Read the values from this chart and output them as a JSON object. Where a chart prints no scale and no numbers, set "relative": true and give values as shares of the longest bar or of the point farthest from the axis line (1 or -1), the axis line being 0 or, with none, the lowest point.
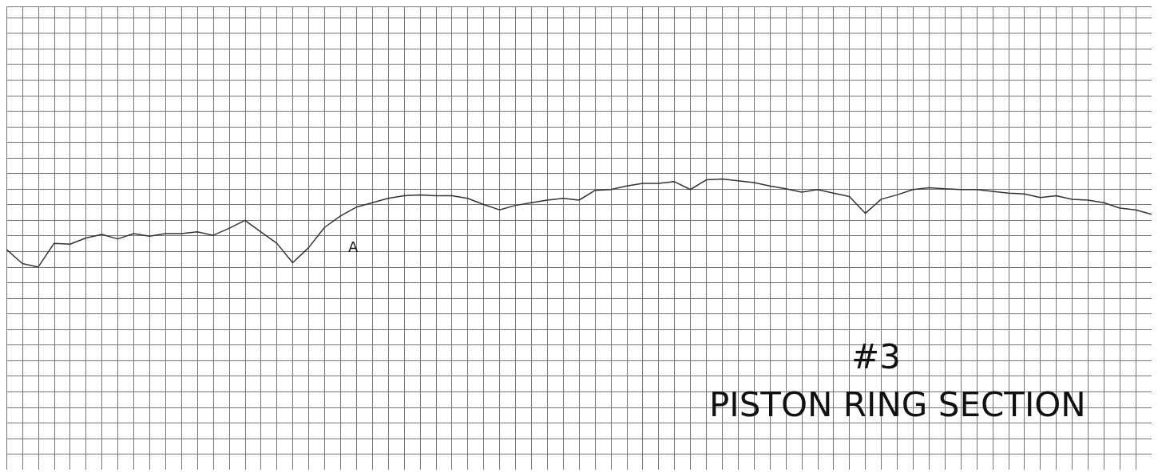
{
  "chart_data": {
    "type": "line",
    "relative": true,
    "grid": true,
    "marker": "none",
    "line_style": "solid",
    "categories": [
      null,
      null,
      null,
      null,
      null,
      null,
      null,
      null,
      null,
      null,
      null,
      null,
      null,
      null,
      null,
      null,
      null,
      null,
      null,
      null,
      null,
      null,
      null,
      null,
      null,
      null,
      null,
      null,
      null,
      null,
      null,
      null,
      null,
      null,
      null,
      null,
      null,
      null,
      null,
      null,
      null,
      null,
      null,
      null,
      null,
      null,
      null,
      null,
      null,
      null,
      null,
      null,
      null,
      null,
      null,
      null,
      null,
      null,
      null,
      null,
      null,
      null,
      null,
      null,
      null,
      null,
      null,
      null,
      null,
      null,
      null,
      null,
      null
    ],
    "series": [
      {
        "color": "#333333",
        "values": [
          0.2,
          0.04,
          0.0,
          0.27,
          0.26,
          0.33,
          0.37,
          0.32,
          0.38,
          0.35,
          0.38,
          0.38,
          0.4,
          0.36,
          0.44,
          0.53,
          0.4,
          0.27,
          0.05,
          0.22,
          0.45,
          0.58,
          0.68,
          0.73,
          0.78,
          0.81,
          0.82,
          0.81,
          0.81,
          0.78,
          0.71,
          0.65,
          0.7,
          0.73,
          0.76,
          0.78,
          0.76,
          0.87,
          0.88,
          0.92,
          0.95,
          0.95,
          0.97,
          0.88,
          0.99,
          1.0,
          0.98,
          0.96,
          0.92,
          0.89,
          0.85,
          0.88,
          0.84,
          0.8,
          0.61,
          0.77,
          0.82,
          0.88,
          0.9,
          0.89,
          0.88,
          0.88,
          0.86,
          0.84,
          0.83,
          0.79,
          0.81,
          0.77,
          0.76,
          0.73,
          0.67,
          0.65,
          0.6
        ]
      }
    ],
    "annotations": [
      "A",
      "#3",
      "PISTON RING SECTION"
    ]
  }
}
